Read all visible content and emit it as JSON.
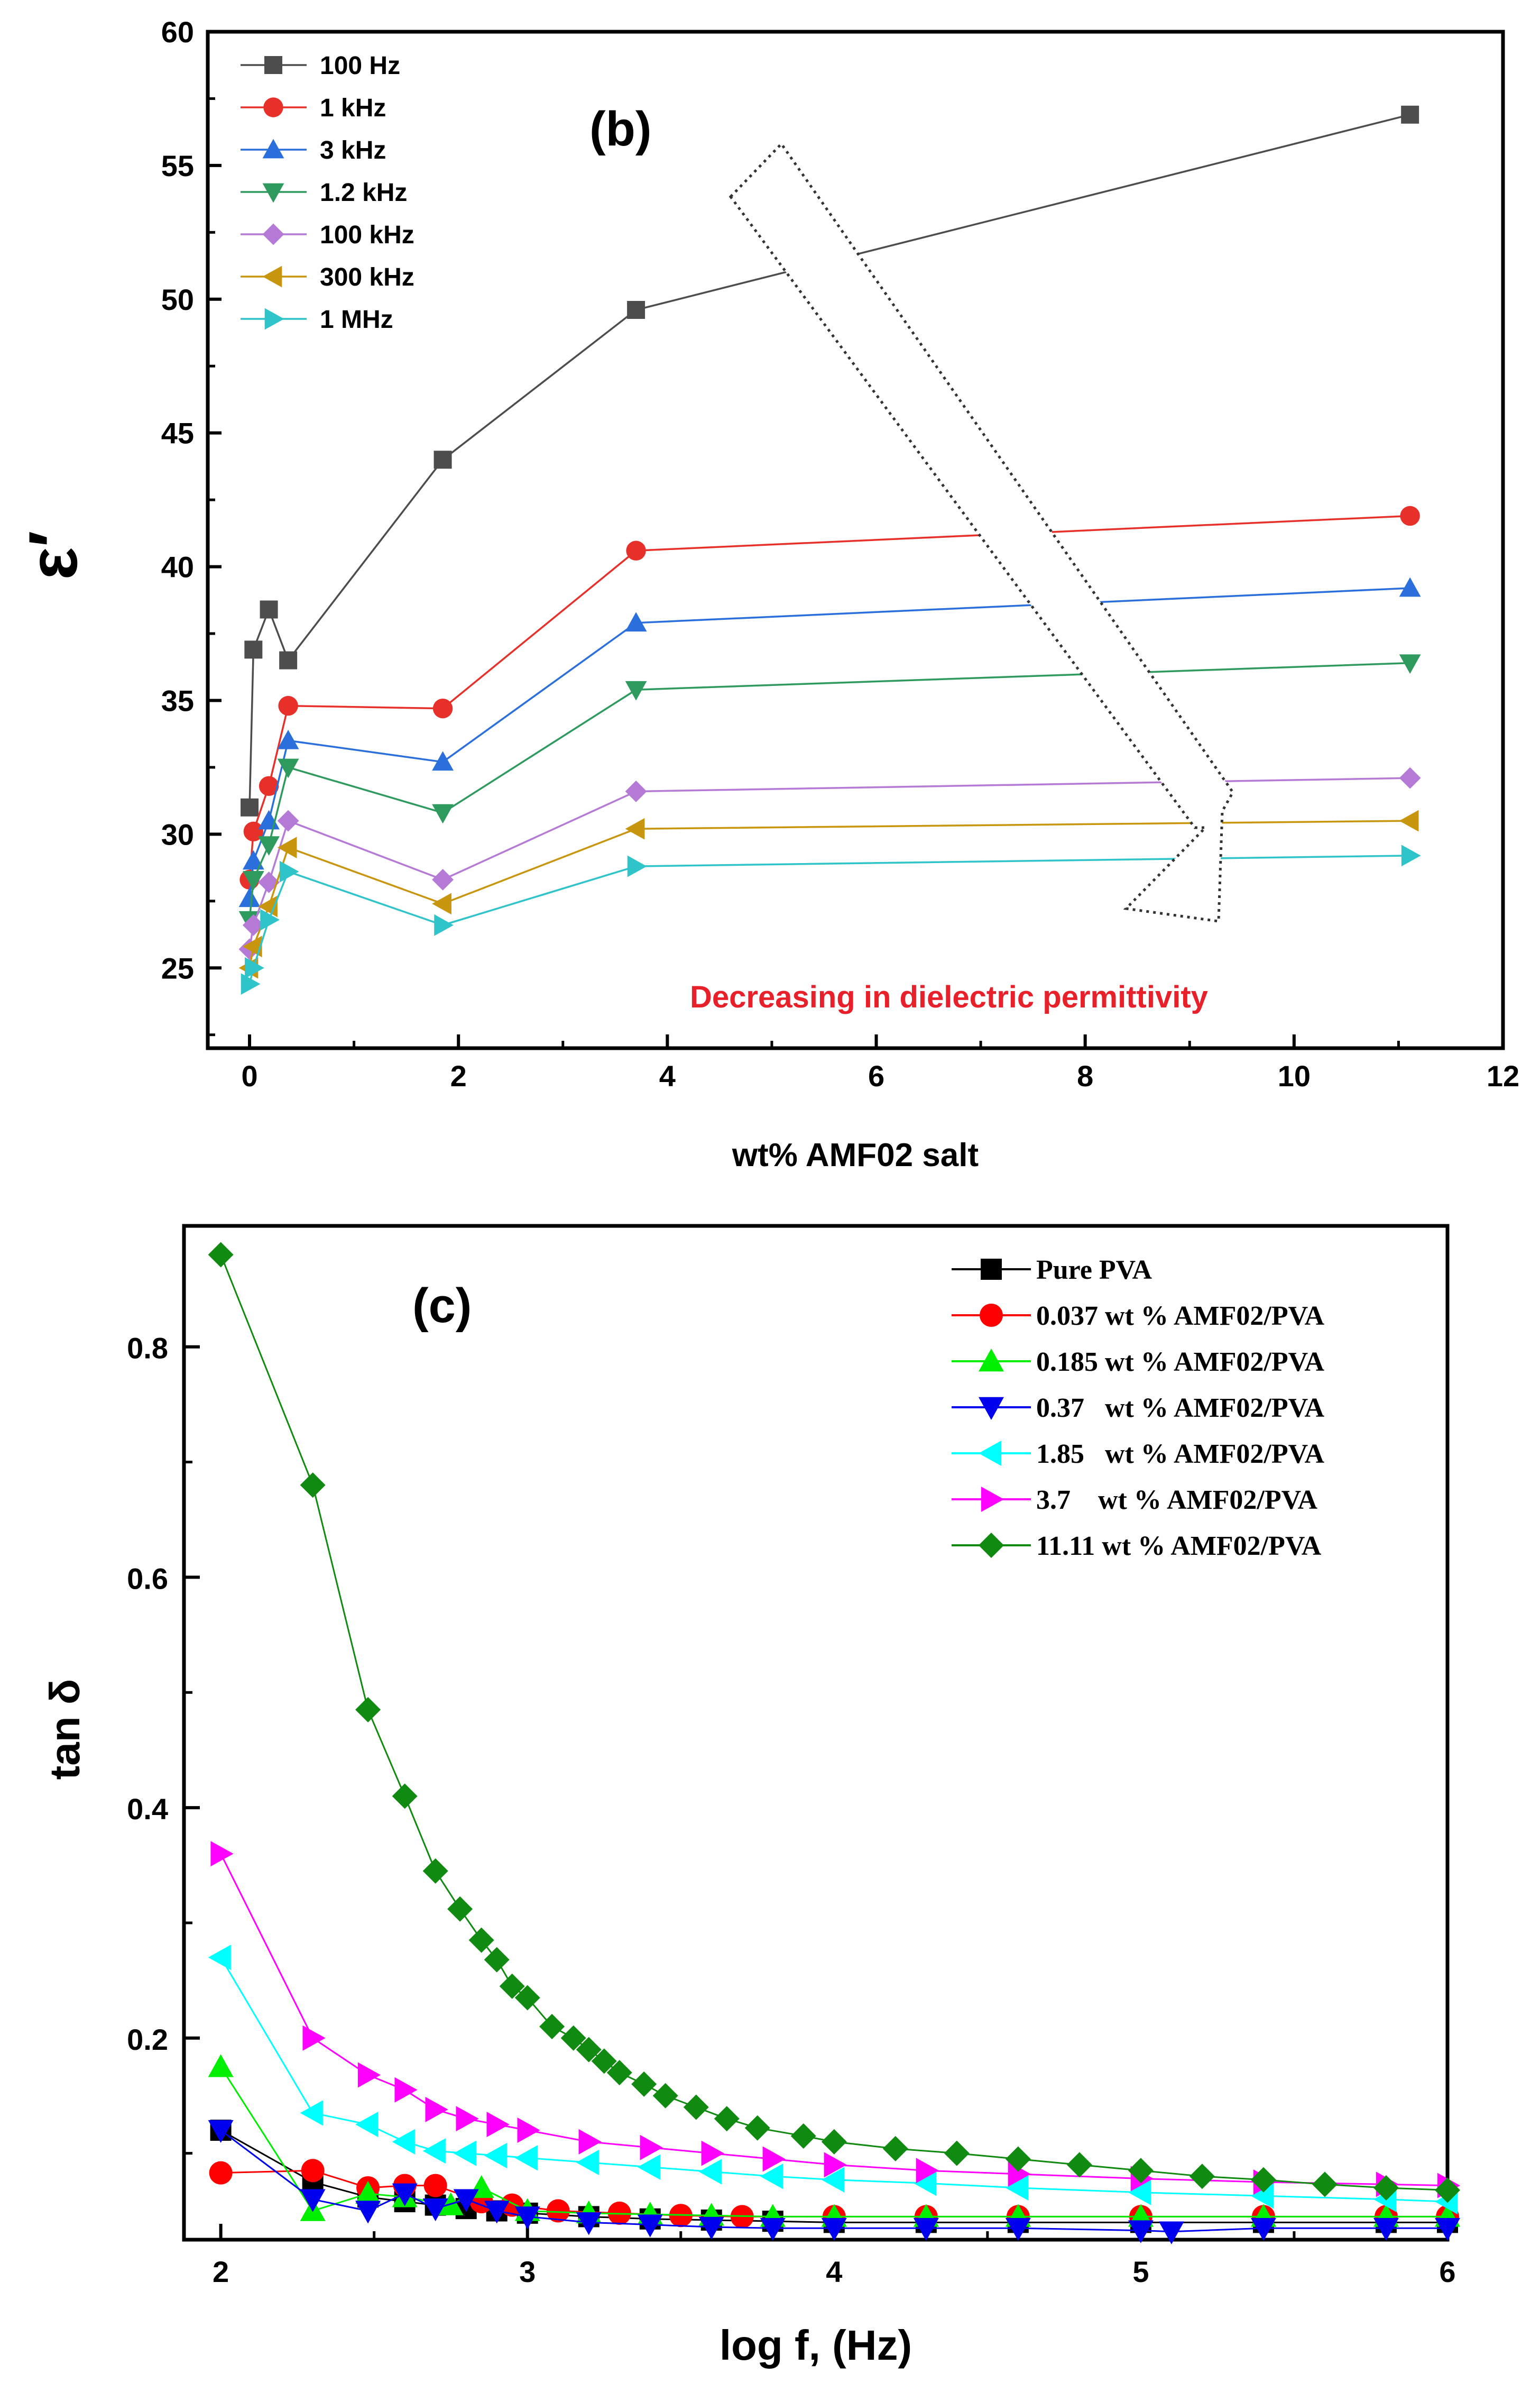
{
  "chart_data": [
    {
      "type": "line",
      "panel_label": "(b)",
      "title": "",
      "xlabel": "wt% AMF02 salt",
      "ylabel": "ε′",
      "xlim": [
        -0.4,
        12
      ],
      "ylim": [
        22,
        60
      ],
      "x_ticks": [
        0,
        2,
        4,
        6,
        8,
        10,
        12
      ],
      "y_ticks": [
        25,
        30,
        35,
        40,
        45,
        50,
        55,
        60
      ],
      "legend_position": "top-left",
      "annotation": {
        "text": "Decreasing in dielectric permittivity",
        "color": "#e8202a"
      },
      "x": [
        0,
        0.037,
        0.185,
        0.37,
        1.85,
        3.7,
        11.11
      ],
      "series": [
        {
          "name": "100 Hz",
          "color": "#4d4d4d",
          "marker": "square",
          "values": [
            31.0,
            36.9,
            38.4,
            36.5,
            44.0,
            49.6,
            56.9
          ]
        },
        {
          "name": "1 kHz",
          "color": "#e8302a",
          "marker": "circle",
          "values": [
            28.3,
            30.1,
            31.8,
            34.8,
            34.7,
            40.6,
            41.9
          ]
        },
        {
          "name": "3 kHz",
          "color": "#2a6fdb",
          "marker": "triangle-up",
          "values": [
            27.6,
            29.0,
            30.5,
            33.5,
            32.7,
            37.9,
            39.2
          ]
        },
        {
          "name": "1.2 kHz",
          "color": "#2e9a5e",
          "marker": "triangle-down",
          "values": [
            26.8,
            28.3,
            29.6,
            32.5,
            30.8,
            35.4,
            36.4
          ]
        },
        {
          "name": "100 kHz",
          "color": "#b57ad6",
          "marker": "diamond",
          "values": [
            25.7,
            26.6,
            28.2,
            30.5,
            28.3,
            31.6,
            32.1
          ]
        },
        {
          "name": "300 kHz",
          "color": "#c8960e",
          "marker": "triangle-left",
          "values": [
            25.0,
            25.8,
            27.3,
            29.5,
            27.4,
            30.2,
            30.5
          ]
        },
        {
          "name": "1 MHz",
          "color": "#2ec4c9",
          "marker": "triangle-right",
          "values": [
            24.4,
            25.0,
            26.8,
            28.6,
            26.6,
            28.8,
            29.2
          ]
        }
      ]
    },
    {
      "type": "scatter",
      "panel_label": "(c)",
      "title": "",
      "xlabel": "log f, (Hz)",
      "ylabel": "tan δ",
      "xlim": [
        1.88,
        6
      ],
      "ylim": [
        0.025,
        0.905
      ],
      "x_ticks": [
        2,
        3,
        4,
        5,
        6
      ],
      "y_ticks": [
        0.2,
        0.4,
        0.6,
        0.8
      ],
      "y_tick_labels": [
        "0.2",
        "0.4",
        "0.6",
        "0.8"
      ],
      "legend_position": "top-right",
      "series": [
        {
          "name": "Pure PVA",
          "color": "#000000",
          "marker": "square",
          "points": [
            [
              2.0,
              0.12
            ],
            [
              2.3,
              0.075
            ],
            [
              2.48,
              0.062
            ],
            [
              2.6,
              0.058
            ],
            [
              2.7,
              0.055
            ],
            [
              2.8,
              0.052
            ],
            [
              2.9,
              0.05
            ],
            [
              3.0,
              0.048
            ],
            [
              3.2,
              0.045
            ],
            [
              3.4,
              0.043
            ],
            [
              3.6,
              0.042
            ],
            [
              3.8,
              0.041
            ],
            [
              4.0,
              0.04
            ],
            [
              4.3,
              0.04
            ],
            [
              4.6,
              0.04
            ],
            [
              5.0,
              0.04
            ],
            [
              5.4,
              0.04
            ],
            [
              5.8,
              0.04
            ],
            [
              6.0,
              0.04
            ]
          ]
        },
        {
          "name": "0.037 wt % AMF02/PVA",
          "color": "#ff0000",
          "marker": "circle",
          "points": [
            [
              2.0,
              0.083
            ],
            [
              2.3,
              0.085
            ],
            [
              2.48,
              0.07
            ],
            [
              2.6,
              0.072
            ],
            [
              2.7,
              0.072
            ],
            [
              2.85,
              0.058
            ],
            [
              2.95,
              0.055
            ],
            [
              3.1,
              0.05
            ],
            [
              3.3,
              0.048
            ],
            [
              3.5,
              0.046
            ],
            [
              3.7,
              0.045
            ],
            [
              4.0,
              0.045
            ],
            [
              4.3,
              0.045
            ],
            [
              4.6,
              0.045
            ],
            [
              5.0,
              0.045
            ],
            [
              5.4,
              0.045
            ],
            [
              5.8,
              0.045
            ],
            [
              6.0,
              0.045
            ]
          ]
        },
        {
          "name": "0.185 wt % AMF02/PVA",
          "color": "#00ee00",
          "marker": "triangle-up",
          "points": [
            [
              2.0,
              0.175
            ],
            [
              2.3,
              0.05
            ],
            [
              2.48,
              0.065
            ],
            [
              2.6,
              0.062
            ],
            [
              2.75,
              0.055
            ],
            [
              2.85,
              0.07
            ],
            [
              3.0,
              0.05
            ],
            [
              3.2,
              0.048
            ],
            [
              3.4,
              0.047
            ],
            [
              3.6,
              0.046
            ],
            [
              3.8,
              0.045
            ],
            [
              4.0,
              0.045
            ],
            [
              4.3,
              0.045
            ],
            [
              4.6,
              0.045
            ],
            [
              5.0,
              0.045
            ],
            [
              5.4,
              0.045
            ],
            [
              5.8,
              0.045
            ],
            [
              6.0,
              0.045
            ]
          ]
        },
        {
          "name": "0.37   wt % AMF02/PVA",
          "color": "#0000ee",
          "marker": "triangle-down",
          "points": [
            [
              2.0,
              0.12
            ],
            [
              2.3,
              0.06
            ],
            [
              2.48,
              0.05
            ],
            [
              2.6,
              0.065
            ],
            [
              2.7,
              0.052
            ],
            [
              2.8,
              0.06
            ],
            [
              2.9,
              0.05
            ],
            [
              3.0,
              0.045
            ],
            [
              3.2,
              0.04
            ],
            [
              3.4,
              0.038
            ],
            [
              3.6,
              0.036
            ],
            [
              3.8,
              0.035
            ],
            [
              4.0,
              0.035
            ],
            [
              4.3,
              0.035
            ],
            [
              4.6,
              0.035
            ],
            [
              5.0,
              0.033
            ],
            [
              5.1,
              0.032
            ],
            [
              5.4,
              0.035
            ],
            [
              5.8,
              0.035
            ],
            [
              6.0,
              0.035
            ]
          ]
        },
        {
          "name": "1.85   wt % AMF02/PVA",
          "color": "#00ffff",
          "marker": "triangle-left",
          "points": [
            [
              2.0,
              0.27
            ],
            [
              2.3,
              0.135
            ],
            [
              2.48,
              0.125
            ],
            [
              2.6,
              0.11
            ],
            [
              2.7,
              0.102
            ],
            [
              2.8,
              0.1
            ],
            [
              2.9,
              0.098
            ],
            [
              3.0,
              0.096
            ],
            [
              3.2,
              0.092
            ],
            [
              3.4,
              0.088
            ],
            [
              3.6,
              0.084
            ],
            [
              3.8,
              0.08
            ],
            [
              4.0,
              0.077
            ],
            [
              4.3,
              0.074
            ],
            [
              4.6,
              0.07
            ],
            [
              5.0,
              0.066
            ],
            [
              5.4,
              0.063
            ],
            [
              5.8,
              0.06
            ],
            [
              6.0,
              0.058
            ]
          ]
        },
        {
          "name": "3.7    wt % AMF02/PVA",
          "color": "#ff00ff",
          "marker": "triangle-right",
          "points": [
            [
              2.0,
              0.36
            ],
            [
              2.3,
              0.2
            ],
            [
              2.48,
              0.168
            ],
            [
              2.6,
              0.155
            ],
            [
              2.7,
              0.138
            ],
            [
              2.8,
              0.13
            ],
            [
              2.9,
              0.125
            ],
            [
              3.0,
              0.12
            ],
            [
              3.2,
              0.11
            ],
            [
              3.4,
              0.105
            ],
            [
              3.6,
              0.1
            ],
            [
              3.8,
              0.095
            ],
            [
              4.0,
              0.09
            ],
            [
              4.3,
              0.085
            ],
            [
              4.6,
              0.082
            ],
            [
              5.0,
              0.078
            ],
            [
              5.4,
              0.075
            ],
            [
              5.8,
              0.073
            ],
            [
              6.0,
              0.072
            ]
          ]
        },
        {
          "name": "11.11 wt % AMF02/PVA",
          "color": "#108a10",
          "marker": "diamond",
          "points": [
            [
              2.0,
              0.88
            ],
            [
              2.3,
              0.68
            ],
            [
              2.48,
              0.485
            ],
            [
              2.6,
              0.41
            ],
            [
              2.7,
              0.345
            ],
            [
              2.78,
              0.312
            ],
            [
              2.85,
              0.285
            ],
            [
              2.9,
              0.268
            ],
            [
              2.95,
              0.245
            ],
            [
              3.0,
              0.235
            ],
            [
              3.08,
              0.21
            ],
            [
              3.15,
              0.2
            ],
            [
              3.2,
              0.19
            ],
            [
              3.25,
              0.18
            ],
            [
              3.3,
              0.17
            ],
            [
              3.38,
              0.16
            ],
            [
              3.45,
              0.15
            ],
            [
              3.55,
              0.14
            ],
            [
              3.65,
              0.13
            ],
            [
              3.75,
              0.122
            ],
            [
              3.9,
              0.115
            ],
            [
              4.0,
              0.11
            ],
            [
              4.2,
              0.104
            ],
            [
              4.4,
              0.1
            ],
            [
              4.6,
              0.095
            ],
            [
              4.8,
              0.09
            ],
            [
              5.0,
              0.085
            ],
            [
              5.2,
              0.08
            ],
            [
              5.4,
              0.077
            ],
            [
              5.6,
              0.073
            ],
            [
              5.8,
              0.07
            ],
            [
              6.0,
              0.068
            ]
          ]
        }
      ]
    }
  ]
}
